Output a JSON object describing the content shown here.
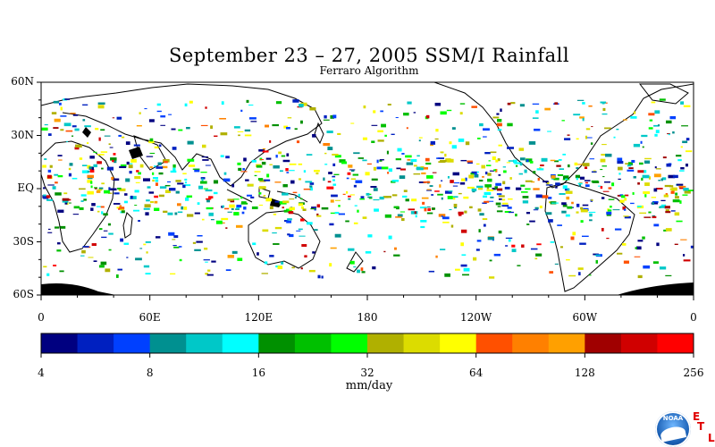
{
  "title": "September 23 – 27, 2005 SSM/I Rainfall",
  "subtitle": "Ferraro Algorithm",
  "map": {
    "lat_labels": [
      "60N",
      "30N",
      "EQ",
      "30S",
      "60S"
    ],
    "lon_labels": [
      "0",
      "60E",
      "120E",
      "180",
      "120W",
      "60W",
      "0"
    ],
    "land_color": "#000000",
    "background_color": "#ffffff"
  },
  "colorbar": {
    "units": "mm/day",
    "tick_labels": [
      "4",
      "8",
      "16",
      "32",
      "64",
      "128",
      "256"
    ],
    "colors": [
      "#000080",
      "#0020c0",
      "#0040ff",
      "#009090",
      "#00c8c8",
      "#00ffff",
      "#009000",
      "#00c000",
      "#00ff00",
      "#b0b000",
      "#dcdc00",
      "#ffff00",
      "#ff5000",
      "#ff8000",
      "#ffa000",
      "#a00000",
      "#d00000",
      "#ff0000"
    ]
  },
  "logo": {
    "name": "NOAA",
    "letters": [
      "E",
      "T",
      "L"
    ]
  }
}
